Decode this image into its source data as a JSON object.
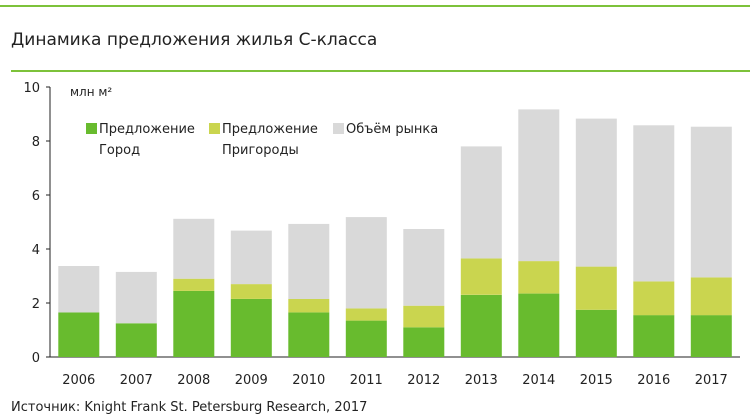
{
  "title": "Динамика предложения жилья С-класса",
  "source": "Источник: Knight Frank St. Petersburg Research, 2017",
  "colors": {
    "accent": "#7dc23a",
    "city": "#68bb2e",
    "suburbs": "#cad54f",
    "market": "#d9d9d9"
  },
  "chart_data": {
    "type": "bar",
    "stacked": true,
    "unit_label": "млн м²",
    "categories": [
      "2006",
      "2007",
      "2008",
      "2009",
      "2010",
      "2011",
      "2012",
      "2013",
      "2014",
      "2015",
      "2016",
      "2017"
    ],
    "series": [
      {
        "name": "Предложение Город",
        "legend_lines": [
          "Предложение",
          "Город"
        ],
        "color": "#68bb2e",
        "values": [
          1.65,
          1.25,
          2.45,
          2.15,
          1.65,
          1.35,
          1.1,
          2.3,
          2.35,
          1.75,
          1.55,
          1.55
        ]
      },
      {
        "name": "Предложение Пригороды",
        "legend_lines": [
          "Предложение",
          "Пригороды"
        ],
        "color": "#cad54f",
        "values": [
          0,
          0,
          0.45,
          0.55,
          0.5,
          0.45,
          0.8,
          1.35,
          1.2,
          1.6,
          1.25,
          1.4
        ]
      },
      {
        "name": "Объём рынка",
        "legend_lines": [
          "Объём рынка"
        ],
        "color": "#d9d9d9",
        "values": [
          1.72,
          1.9,
          2.22,
          1.98,
          2.78,
          3.38,
          2.84,
          4.15,
          5.62,
          5.48,
          5.78,
          5.58
        ]
      }
    ],
    "ylim": [
      0,
      10
    ],
    "yticks": [
      0,
      2,
      4,
      6,
      8,
      10
    ],
    "grid": false,
    "legend_position": "top-left"
  }
}
